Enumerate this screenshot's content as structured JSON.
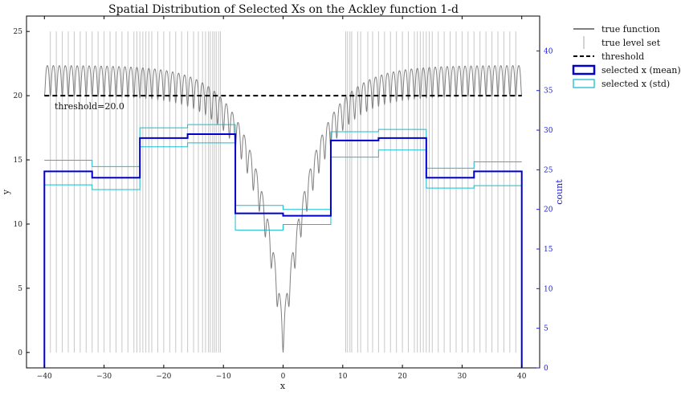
{
  "chart_data": {
    "type": "line",
    "title": "Spatial Distribution of Selected Xs on the Ackley function 1-d",
    "xlabel": "x",
    "ylabel": "y",
    "y2label": "count",
    "xlim": [
      -43,
      43
    ],
    "ylim": [
      -1.2,
      26.2
    ],
    "y2lim": [
      0,
      44.4
    ],
    "x_ticks": [
      -40,
      -30,
      -20,
      -10,
      0,
      10,
      20,
      30,
      40
    ],
    "y_ticks": [
      0,
      5,
      10,
      15,
      20,
      25
    ],
    "y2_ticks": [
      0,
      5,
      10,
      15,
      20,
      25,
      30,
      35,
      40
    ],
    "threshold": 20.0,
    "threshold_label": "threshold=20.0",
    "function": {
      "name": "ackley-1d",
      "a": 20,
      "b": 0.2,
      "c": 6.283185307,
      "x_range": [
        -40,
        40
      ]
    },
    "level_set": {
      "level": 20.0,
      "x_positions": [
        -39,
        -38,
        -37,
        -36,
        -35,
        -34,
        -33,
        -32,
        -31,
        -30,
        -29,
        -28,
        -27,
        -26,
        -25,
        -24,
        -24.5,
        -23,
        -23.5,
        -22.5,
        -22,
        -21,
        -20,
        -19,
        -18,
        -17,
        -16,
        -15,
        -14.2,
        -13.5,
        -13,
        -12.5,
        -12.2,
        -11.8,
        -11.5,
        -11.2,
        -10.8,
        -10.5,
        10.5,
        10.8,
        11.2,
        11.5,
        12.5,
        13,
        14.2,
        15,
        16,
        17,
        18,
        19,
        20,
        21,
        22,
        22.5,
        23,
        23.5,
        24,
        24.5,
        25,
        26,
        27,
        28,
        29,
        30,
        31,
        32,
        33,
        34,
        35,
        36,
        37,
        38,
        39
      ],
      "y_range": [
        0,
        25
      ]
    },
    "series": [
      {
        "name": "selected x (mean)",
        "type": "step",
        "bin_edges": [
          -40,
          -32,
          -24,
          -16,
          -8,
          0,
          8,
          16,
          24,
          32,
          40
        ],
        "counts": [
          24.8,
          24.0,
          29.0,
          29.5,
          19.5,
          19.2,
          28.7,
          29.0,
          24.0,
          24.8
        ]
      },
      {
        "name": "selected x (std)",
        "type": "step-band",
        "bin_edges": [
          -40,
          -32,
          -24,
          -16,
          -8,
          0,
          8,
          16,
          24,
          32,
          40
        ],
        "upper": [
          26.2,
          25.4,
          30.3,
          30.7,
          20.5,
          20.0,
          29.8,
          30.1,
          25.2,
          26.0
        ],
        "lower": [
          23.1,
          22.5,
          27.9,
          28.4,
          17.4,
          18.1,
          26.6,
          27.5,
          22.7,
          23.0
        ]
      }
    ],
    "legend": {
      "placement": "outside-top-right",
      "entries": [
        {
          "label": "true function",
          "style": "line",
          "color": "#808080"
        },
        {
          "label": "true level set",
          "style": "vline",
          "color": "#a9a9a9"
        },
        {
          "label": "threshold",
          "style": "dashed",
          "color": "#000000"
        },
        {
          "label": "selected x (mean)",
          "style": "box",
          "color": "#0000cc"
        },
        {
          "label": "selected x (std)",
          "style": "box-thin",
          "color": "#17becf"
        }
      ]
    },
    "colors": {
      "function": "#808080",
      "level_set": "#c8c8c8",
      "threshold": "#000000",
      "mean": "#0000cc",
      "std": "#17becf",
      "right_axis": "#2020d0"
    }
  }
}
